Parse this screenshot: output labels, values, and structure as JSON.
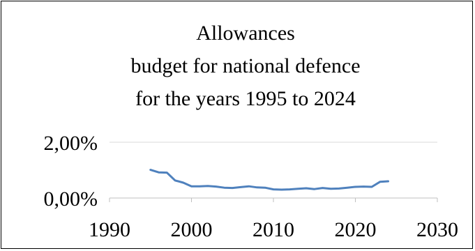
{
  "chart_data": {
    "type": "line",
    "title_lines": [
      "Allowances",
      "budget for national defence",
      "for the years 1995 to 2024"
    ],
    "xlabel": "",
    "ylabel": "",
    "xlim": [
      1990,
      2030
    ],
    "ylim": [
      0,
      2
    ],
    "x_ticks": [
      1990,
      2000,
      2010,
      2020,
      2030
    ],
    "x_tick_labels": [
      "1990",
      "2000",
      "2010",
      "2020",
      "2030"
    ],
    "y_ticks": [
      0,
      2
    ],
    "y_tick_labels": [
      "0,00%",
      "2,00%"
    ],
    "grid": true,
    "legend": "none",
    "series": [
      {
        "color": "#4f81bd",
        "x": [
          1995,
          1996,
          1997,
          1998,
          1999,
          2000,
          2001,
          2002,
          2003,
          2004,
          2005,
          2006,
          2007,
          2008,
          2009,
          2010,
          2011,
          2012,
          2013,
          2014,
          2015,
          2016,
          2017,
          2018,
          2019,
          2020,
          2021,
          2022,
          2023,
          2024
        ],
        "values": [
          1.01,
          0.92,
          0.91,
          0.63,
          0.55,
          0.42,
          0.42,
          0.43,
          0.41,
          0.37,
          0.36,
          0.39,
          0.42,
          0.38,
          0.37,
          0.31,
          0.3,
          0.31,
          0.33,
          0.35,
          0.32,
          0.36,
          0.33,
          0.34,
          0.37,
          0.4,
          0.41,
          0.4,
          0.58,
          0.6
        ]
      }
    ]
  }
}
